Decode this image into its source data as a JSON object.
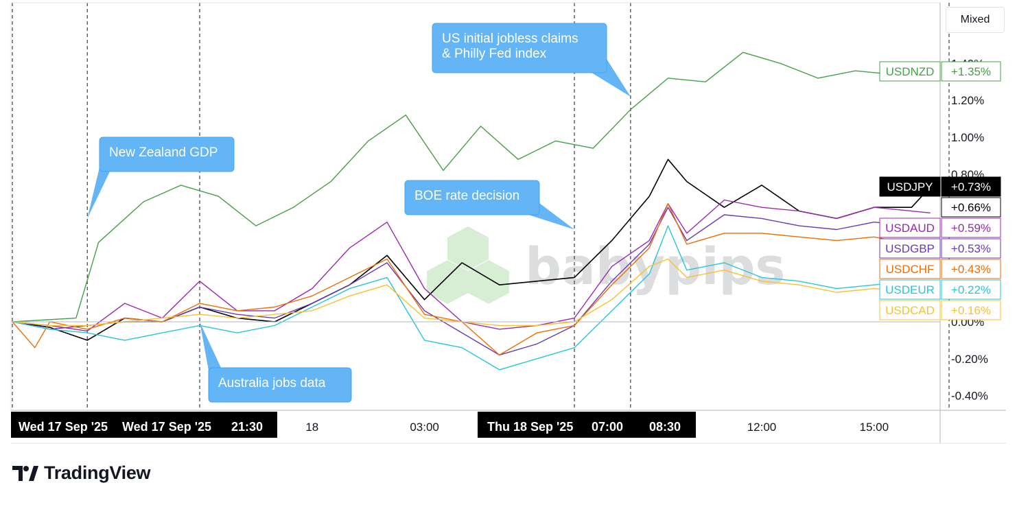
{
  "toolbar": {
    "mode_label": "Mixed"
  },
  "brand": {
    "name": "TradingView",
    "watermark": "babypips"
  },
  "chart_data": {
    "type": "line",
    "y_unit": "%",
    "ylim": [
      -0.5,
      1.6
    ],
    "y_ticks": [
      {
        "value": 1.4,
        "label": "1.40%"
      },
      {
        "value": 1.2,
        "label": "1.20%"
      },
      {
        "value": 1.0,
        "label": "1.00%"
      },
      {
        "value": 0.8,
        "label": "0.80%"
      },
      {
        "value": 0.0,
        "label": "0.00%"
      },
      {
        "value": -0.2,
        "label": "-0.20%"
      },
      {
        "value": -0.4,
        "label": "-0.40%"
      }
    ],
    "x_ticks": [
      {
        "t": 8,
        "label": "18"
      },
      {
        "t": 11,
        "label": "03:00"
      },
      {
        "t": 20,
        "label": "12:00"
      },
      {
        "t": 23,
        "label": "15:00"
      }
    ],
    "x_highlight_labels": [
      {
        "t": 0,
        "label": "Wed 17 Sep '25"
      },
      {
        "t": 2,
        "label": "Wed 17 Sep '25"
      },
      {
        "t": 5,
        "label": "21:30"
      },
      {
        "t": 15,
        "label": "Thu 18 Sep '25"
      },
      {
        "t": 16.5,
        "label": "07:00"
      },
      {
        "t": 18,
        "label": "08:30"
      }
    ],
    "event_lines_t": [
      0,
      2,
      5,
      15,
      16.5,
      25
    ],
    "events": [
      {
        "text": "New Zealand GDP",
        "t": 2,
        "value": 0.56
      },
      {
        "text": "Australia jobs data",
        "t": 5,
        "value": 0.0
      },
      {
        "text": "BOE rate decision",
        "t": 15,
        "value": 0.5
      },
      {
        "text": "US initial jobless claims\n& Philly Fed index",
        "t": 16.5,
        "value": 1.22
      }
    ],
    "series": [
      {
        "name": "USDNZD",
        "label": "+1.35%",
        "last": 1.35,
        "color": "#43a047",
        "x": [
          0,
          1.7,
          2.3,
          3.5,
          4.5,
          5.5,
          6.5,
          7.5,
          8.5,
          9.5,
          10.5,
          11.5,
          12.5,
          13.5,
          14.5,
          15.5,
          16.5,
          17.5,
          18.5,
          19.5,
          20.5,
          21.5,
          22.5,
          23.5,
          24.2
        ],
        "values": [
          0.0,
          0.02,
          0.43,
          0.65,
          0.74,
          0.68,
          0.52,
          0.62,
          0.76,
          0.98,
          1.12,
          0.82,
          1.06,
          0.88,
          0.98,
          0.94,
          1.15,
          1.32,
          1.3,
          1.46,
          1.4,
          1.32,
          1.36,
          1.34,
          1.35
        ]
      },
      {
        "name": "USDJPY",
        "label": "+0.73%",
        "last": 0.73,
        "color": "#000000",
        "x": [
          0,
          1,
          2,
          3,
          4,
          5,
          6,
          7,
          8,
          9,
          10,
          11,
          12,
          13,
          14,
          15,
          16,
          17,
          17.5,
          18,
          19,
          20,
          21,
          22,
          23,
          24,
          24.5
        ],
        "values": [
          0.0,
          -0.03,
          -0.1,
          0.02,
          0.0,
          0.08,
          0.02,
          0.0,
          0.1,
          0.2,
          0.36,
          0.12,
          0.32,
          0.2,
          0.22,
          0.24,
          0.44,
          0.68,
          0.88,
          0.76,
          0.62,
          0.74,
          0.6,
          0.56,
          0.62,
          0.62,
          0.73
        ]
      },
      {
        "name": "USDJPY_2",
        "label": "+0.66%",
        "last": 0.66,
        "color": "#ffffff",
        "x": [],
        "values": []
      },
      {
        "name": "USDAUD",
        "label": "+0.59%",
        "last": 0.59,
        "color": "#9c27b0",
        "x": [
          0,
          1,
          2,
          3,
          4,
          5,
          6,
          7,
          8,
          9,
          10,
          11,
          12,
          13,
          14,
          15,
          16,
          17,
          17.5,
          18,
          19,
          20,
          21,
          22,
          23,
          24,
          24.5
        ],
        "values": [
          0.0,
          -0.02,
          -0.05,
          0.1,
          0.02,
          0.22,
          0.06,
          0.06,
          0.18,
          0.4,
          0.54,
          0.18,
          0.0,
          -0.04,
          -0.02,
          0.02,
          0.3,
          0.44,
          0.64,
          0.48,
          0.66,
          0.62,
          0.6,
          0.56,
          0.62,
          0.6,
          0.59
        ]
      },
      {
        "name": "USDGBP",
        "label": "+0.53%",
        "last": 0.53,
        "color": "#673ab7",
        "x": [
          0,
          1,
          2,
          3,
          4,
          5,
          6,
          7,
          8,
          9,
          10,
          11,
          12,
          13,
          14,
          15,
          16,
          17,
          17.5,
          18,
          19,
          20,
          21,
          22,
          23,
          24,
          24.5
        ],
        "values": [
          0.0,
          -0.04,
          -0.02,
          0.0,
          0.0,
          0.08,
          0.04,
          0.02,
          0.1,
          0.2,
          0.32,
          0.06,
          -0.06,
          -0.18,
          -0.12,
          -0.02,
          0.22,
          0.42,
          0.62,
          0.44,
          0.58,
          0.56,
          0.52,
          0.5,
          0.54,
          0.52,
          0.53
        ]
      },
      {
        "name": "USDCHF",
        "label": "+0.43%",
        "last": 0.43,
        "color": "#ef6c00",
        "x": [
          0,
          0.6,
          1,
          2,
          3,
          4,
          5,
          6,
          7,
          8,
          9,
          10,
          11,
          12,
          13,
          14,
          15,
          16,
          17,
          17.5,
          18,
          19,
          20,
          21,
          22,
          23,
          24,
          24.5
        ],
        "values": [
          0.0,
          -0.14,
          0.0,
          -0.04,
          0.02,
          0.0,
          0.1,
          0.06,
          0.08,
          0.14,
          0.24,
          0.34,
          0.04,
          0.0,
          -0.18,
          -0.06,
          -0.02,
          0.2,
          0.4,
          0.64,
          0.42,
          0.48,
          0.48,
          0.46,
          0.44,
          0.46,
          0.42,
          0.43
        ]
      },
      {
        "name": "USDEUR",
        "label": "+0.22%",
        "last": 0.22,
        "color": "#26c6da",
        "x": [
          0,
          1,
          2,
          3,
          4,
          5,
          6,
          7,
          8,
          9,
          10,
          11,
          12,
          13,
          14,
          15,
          16,
          17,
          17.5,
          18,
          19,
          20,
          21,
          22,
          23,
          24,
          24.5
        ],
        "values": [
          0.0,
          -0.04,
          -0.06,
          -0.1,
          -0.06,
          -0.02,
          -0.06,
          -0.02,
          0.08,
          0.18,
          0.24,
          -0.1,
          -0.14,
          -0.26,
          -0.2,
          -0.14,
          0.06,
          0.26,
          0.52,
          0.28,
          0.32,
          0.24,
          0.22,
          0.18,
          0.2,
          0.22,
          0.22
        ]
      },
      {
        "name": "USDCAD",
        "label": "+0.16%",
        "last": 0.16,
        "color": "#fbc02d",
        "x": [
          0,
          1,
          2,
          3,
          4,
          5,
          6,
          7,
          8,
          9,
          10,
          11,
          12,
          13,
          14,
          15,
          16,
          17,
          17.5,
          18,
          19,
          20,
          21,
          22,
          23,
          24,
          24.5
        ],
        "values": [
          0.0,
          -0.02,
          -0.02,
          0.0,
          0.02,
          0.04,
          0.02,
          0.04,
          0.06,
          0.14,
          0.2,
          0.02,
          0.0,
          -0.02,
          -0.02,
          0.0,
          0.12,
          0.3,
          0.34,
          0.24,
          0.28,
          0.22,
          0.2,
          0.16,
          0.18,
          0.16,
          0.16
        ]
      }
    ],
    "grid": false,
    "legend": "right-edge-labels"
  }
}
